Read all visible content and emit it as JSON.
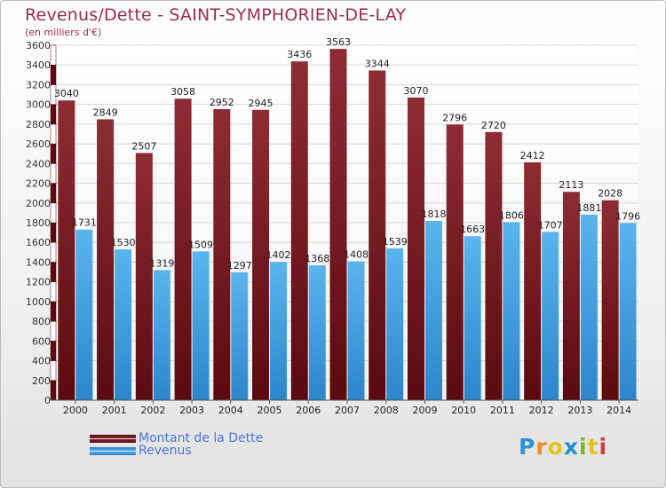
{
  "title": "Revenus/Dette - SAINT-SYMPHORIEN-DE-LAY",
  "subtitle": "(en milliers d'€)",
  "logo_letters": [
    {
      "ch": "P",
      "color": "#2f8fd8"
    },
    {
      "ch": "r",
      "color": "#f08a1c"
    },
    {
      "ch": "o",
      "color": "#e8c21c"
    },
    {
      "ch": "x",
      "color": "#1e8fcf"
    },
    {
      "ch": "i",
      "color": "#78b728"
    },
    {
      "ch": "t",
      "color": "#e8c21c"
    },
    {
      "ch": "i",
      "color": "#d23a36"
    }
  ],
  "chart_data": {
    "type": "bar",
    "categories": [
      "2000",
      "2001",
      "2002",
      "2003",
      "2004",
      "2005",
      "2006",
      "2007",
      "2008",
      "2009",
      "2010",
      "2011",
      "2012",
      "2013",
      "2014"
    ],
    "series": [
      {
        "name": "Montant de la Dette",
        "color": "#7a1e24",
        "values": [
          3040,
          2849,
          2507,
          3058,
          2952,
          2945,
          3436,
          3563,
          3344,
          3070,
          2796,
          2720,
          2412,
          2113,
          2028
        ]
      },
      {
        "name": "Revenus",
        "color": "#4aa3e6",
        "values": [
          1731,
          1530,
          1319,
          1509,
          1297,
          1402,
          1368,
          1408,
          1539,
          1818,
          1663,
          1806,
          1707,
          1881,
          1796
        ]
      }
    ],
    "yticks": [
      0,
      200,
      400,
      600,
      800,
      1000,
      1200,
      1400,
      1600,
      1800,
      2000,
      2200,
      2400,
      2600,
      2800,
      3000,
      3200,
      3400,
      3600
    ],
    "ylim": [
      0,
      3600
    ],
    "grid": true,
    "legend_position": "bottom-left"
  }
}
